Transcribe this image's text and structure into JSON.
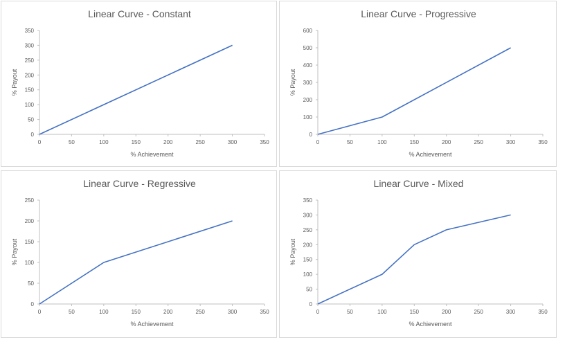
{
  "colors": {
    "series": "#4472c4",
    "axis": "#bfbfbf",
    "text": "#595959",
    "border": "#d9d9d9"
  },
  "chart_data": [
    {
      "type": "line",
      "title": "Linear Curve - Constant",
      "xlabel": "% Achievement",
      "ylabel": "% Payout",
      "xlim": [
        0,
        350
      ],
      "ylim": [
        0,
        350
      ],
      "xticks": [
        0,
        50,
        100,
        150,
        200,
        250,
        300,
        350
      ],
      "yticks": [
        0,
        50,
        100,
        150,
        200,
        250,
        300,
        350
      ],
      "grid": false,
      "series": [
        {
          "x": [
            0,
            300
          ],
          "y": [
            0,
            300
          ]
        }
      ]
    },
    {
      "type": "line",
      "title": "Linear Curve - Progressive",
      "xlabel": "% Achievement",
      "ylabel": "% Payout",
      "xlim": [
        0,
        350
      ],
      "ylim": [
        0,
        600
      ],
      "xticks": [
        0,
        50,
        100,
        150,
        200,
        250,
        300,
        350
      ],
      "yticks": [
        0,
        100,
        200,
        300,
        400,
        500,
        600
      ],
      "grid": false,
      "series": [
        {
          "x": [
            0,
            100,
            300
          ],
          "y": [
            0,
            100,
            500
          ]
        }
      ]
    },
    {
      "type": "line",
      "title": "Linear Curve - Regressive",
      "xlabel": "% Achievement",
      "ylabel": "% Payout",
      "xlim": [
        0,
        350
      ],
      "ylim": [
        0,
        250
      ],
      "xticks": [
        0,
        50,
        100,
        150,
        200,
        250,
        300,
        350
      ],
      "yticks": [
        0,
        50,
        100,
        150,
        200,
        250
      ],
      "grid": false,
      "series": [
        {
          "x": [
            0,
            100,
            300
          ],
          "y": [
            0,
            100,
            200
          ]
        }
      ]
    },
    {
      "type": "line",
      "title": "Linear Curve - Mixed",
      "xlabel": "% Achievement",
      "ylabel": "% Payout",
      "xlim": [
        0,
        350
      ],
      "ylim": [
        0,
        350
      ],
      "xticks": [
        0,
        50,
        100,
        150,
        200,
        250,
        300,
        350
      ],
      "yticks": [
        0,
        50,
        100,
        150,
        200,
        250,
        300,
        350
      ],
      "grid": false,
      "series": [
        {
          "x": [
            0,
            100,
            150,
            200,
            250,
            300
          ],
          "y": [
            0,
            100,
            200,
            250,
            275,
            300
          ]
        }
      ]
    }
  ]
}
